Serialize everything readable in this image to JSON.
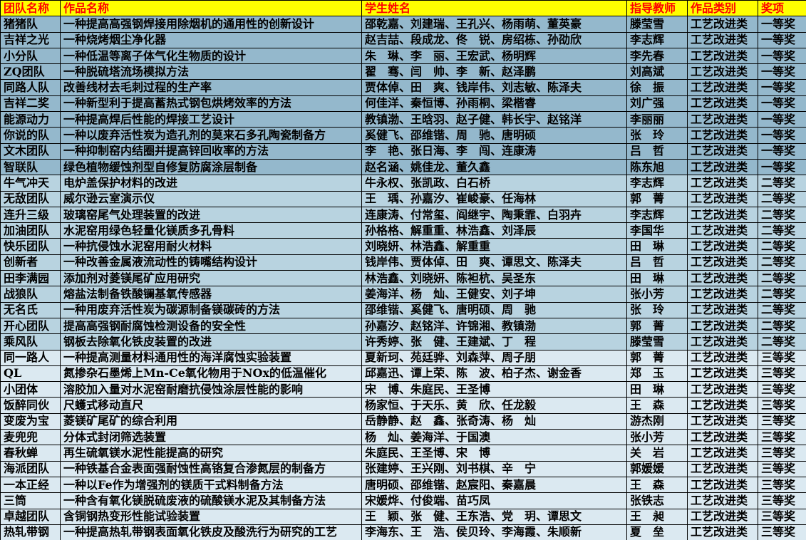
{
  "table": {
    "header": [
      "团队名称",
      "作品名称",
      "学生姓名",
      "指导教师",
      "作品类别",
      "奖项"
    ],
    "rows": [
      [
        "猪猪队",
        "一种提高高强钢焊接用除烟机的通用性的创新设计",
        "邵乾嘉、刘建瑞、王孔兴、杨雨萌、董英豪",
        "滕莹雪",
        "工艺改进类",
        "一等奖"
      ],
      [
        "吉祥之光",
        "一种烧烤烟尘净化器",
        "赵吉喆、段成龙、佟　锐、房绍栋、孙劭欣",
        "李志辉",
        "工艺改进类",
        "一等奖"
      ],
      [
        "小分队",
        "一种低温等离子体气化生物质的设计",
        "朱　琳、李　丽、王宏武、杨明辉",
        "李先春",
        "工艺改进类",
        "一等奖"
      ],
      [
        "ZQ团队",
        "一种脱硫塔流场模拟方法",
        "翟　骞、闫　帅、李　新、赵泽鹏",
        "刘高斌",
        "工艺改进类",
        "一等奖"
      ],
      [
        "同路人队",
        "改善线材去毛刺过程的生产率",
        "贾体倬、田　爽、钱岸伟、刘志敏、陈泽夫",
        "徐　振",
        "工艺改进类",
        "一等奖"
      ],
      [
        "吉祥二奖",
        "一种新型利于提高蓄热式钢包烘烤效率的方法",
        "何佳洋、秦恒博、孙雨桐、梁楷睿",
        "刘广强",
        "工艺改进类",
        "一等奖"
      ],
      [
        "能源动力",
        "一种提高焊后性能的焊接工艺设计",
        "教镇渤、王晗羽、赵子健、韩长宇、赵铭洋",
        "李丽丽",
        "工艺改进类",
        "一等奖"
      ],
      [
        "你说的队",
        "一种以废弃活性炭为造孔剂的莫来石多孔陶瓷制备方",
        "奚健飞、邵维锴、周　驰、唐明硕",
        "张　玲",
        "工艺改进类",
        "一等奖"
      ],
      [
        "文木团队",
        "一种抑制窑内结圈并提高锌回收率的方法",
        "李　艳、张日海、李　闯、连康涛",
        "吕　哲",
        "工艺改进类",
        "一等奖"
      ],
      [
        "智联队",
        "绿色植物缓蚀剂型自修复防腐涂层制备",
        "赵名涵、姚佳龙、董久鑫",
        "陈东旭",
        "工艺改进类",
        "一等奖"
      ],
      [
        "牛气冲天",
        "电炉盖保护材料的改进",
        "牛永权、张凯政、白石桥",
        "李志辉",
        "工艺改进类",
        "二等奖"
      ],
      [
        "无敌团队",
        "威尔逊云室演示仪",
        "王　瑀、孙嘉汐、崔峻豪、任海林",
        "郭　菁",
        "工艺改进类",
        "二等奖"
      ],
      [
        "连升三级",
        "玻璃窑尾气处理装置的改进",
        "连康涛、付常玺、阎继宇、陶秉霏、白羽卉",
        "李志辉",
        "工艺改进类",
        "二等奖"
      ],
      [
        "加油团队",
        "水泥窑用绿色轻量化镁质多孔骨料",
        "孙格格、解重重、林浩鑫、刘泽辰",
        "李国华",
        "工艺改进类",
        "二等奖"
      ],
      [
        "快乐团队",
        "一种抗侵蚀水泥窑用耐火材料",
        "刘晓妍、林浩鑫、解重重",
        "田　琳",
        "工艺改进类",
        "二等奖"
      ],
      [
        "创新者",
        "一种改善金属液流动性的铸嘴结构设计",
        "钱岸伟、贾体倬、田　爽、谭思文、陈泽夫",
        "吕　哲",
        "工艺改进类",
        "二等奖"
      ],
      [
        "田李满园",
        "添加剂对菱镁尾矿应用研究",
        "林浩鑫、刘晓妍、陈袒杭、吴圣东",
        "田　琳",
        "工艺改进类",
        "二等奖"
      ],
      [
        "战狼队",
        "熔盐法制备铁酸镧基氧传感器",
        "姜海洋、杨　灿、王健安、刘子坤",
        "张小芳",
        "工艺改进类",
        "二等奖"
      ],
      [
        "无名氏",
        "一种用废弃活性炭为碳源制备镁碳砖的方法",
        "邵维锴、奚健飞、唐明硕、周　驰",
        "张　玲",
        "工艺改进类",
        "二等奖"
      ],
      [
        "开心团队",
        "提高高强钢耐腐蚀检测设备的安全性",
        "孙嘉汐、赵铭洋、许锦湘、教镇渤",
        "郭　菁",
        "工艺改进类",
        "二等奖"
      ],
      [
        "乘风队",
        "钢板去除氧化铁皮装置的改进",
        "许秀婷、张　健、王建斌、丁　程",
        "滕莹雪",
        "工艺改进类",
        "二等奖"
      ],
      [
        "同一路人",
        "一种提高测量材料通用性的海洋腐蚀实验装置",
        "夏新珂、苑廷骅、刘森萍、周子朋",
        "郭　菁",
        "工艺改进类",
        "三等奖"
      ],
      [
        "QL",
        "氮掺杂石墨烯上Mn-Ce氧化物用于NOx的低温催化",
        "邱嘉迅、谭上荣、陈　波、柏子杰、谢金香",
        "郑　玉",
        "工艺改进类",
        "三等奖"
      ],
      [
        "小团体",
        "溶胶加入量对水泥窑耐磨抗侵蚀涂层性能的影响",
        "宋　博、朱庭民、王圣博",
        "田　琳",
        "工艺改进类",
        "三等奖"
      ],
      [
        "饭醉同伙",
        "尺蠖式移动直尺",
        "杨家恒、于天乐、黄　欣、任龙毅",
        "王　森",
        "工艺改进类",
        "三等奖"
      ],
      [
        "变废为宝",
        "菱镁矿尾矿的综合利用",
        "岳静静、赵　鑫、张奇涛、杨　灿",
        "游杰刚",
        "工艺改进类",
        "三等奖"
      ],
      [
        "麦兜兜",
        "分体式封闭筛选装置",
        "杨　灿、姜海洋、于国澳",
        "张小芳",
        "工艺改进类",
        "三等奖"
      ],
      [
        "春秋蝉",
        "再生硫氧镁水泥性能提高的研究",
        "朱庭民、王圣博、宋　博",
        "关　岩",
        "工艺改进类",
        "三等奖"
      ],
      [
        "海派团队",
        "一种铁基合金表面强耐蚀性高铬复合渗氮层的制备方",
        "张建婷、王兴刚、刘书棋、辛　宁",
        "郭媛媛",
        "工艺改进类",
        "三等奖"
      ],
      [
        "一本正经",
        "一种以Fe作为增强剂的镁质干式料制备方法",
        "唐明硕、邵维锴、赵宸阳、秦嘉晨",
        "王　森",
        "工艺改进类",
        "三等奖"
      ],
      [
        "三筒",
        "一种含有氧化镁脱硫废液的硫酸镁水泥及其制备方法",
        "宋媛烨、付俊端、苗巧凤",
        "张铁志",
        "工艺改进类",
        "三等奖"
      ],
      [
        "卓越团队",
        "含铜钢热变形性能试验装置",
        "王　颖、张　健、王东浩、党　玥、谭思文",
        "王　昶",
        "工艺改进类",
        "三等奖"
      ],
      [
        "热轧带钢",
        "一种提高热轧带钢表面氧化铁皮及酸洗行为研究的工艺",
        "李海东、王　浩、侯贝玲、李海霞、朱顺新",
        "夏　垒",
        "工艺改进类",
        "三等奖"
      ]
    ]
  }
}
